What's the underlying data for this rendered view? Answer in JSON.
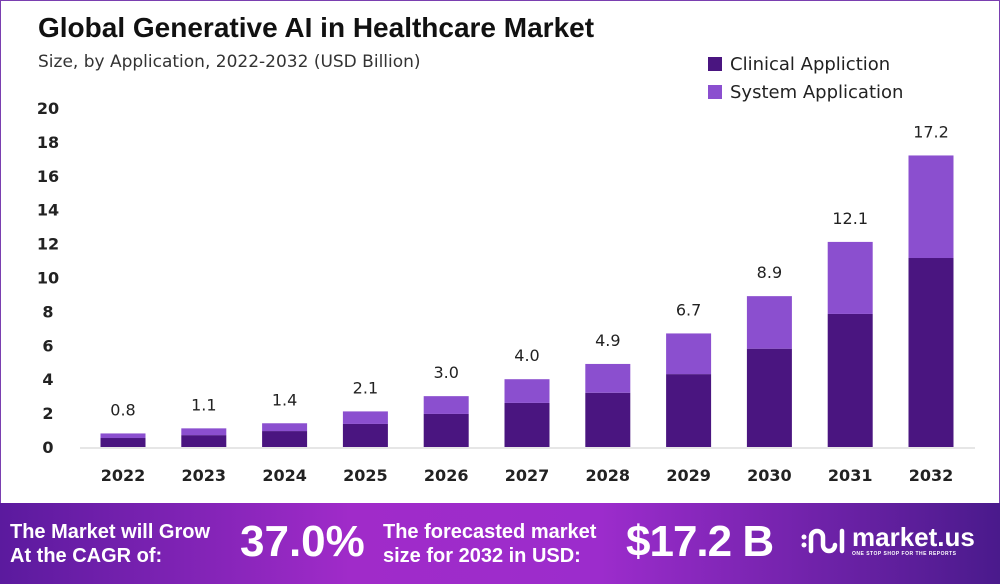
{
  "chart_data": {
    "type": "bar",
    "stacked": true,
    "title": "Global Generative AI in Healthcare Market",
    "subtitle": "Size, by Application, 2022-2032 (USD Billion)",
    "categories": [
      "2022",
      "2023",
      "2024",
      "2025",
      "2026",
      "2027",
      "2028",
      "2029",
      "2030",
      "2031",
      "2032"
    ],
    "series": [
      {
        "name": "Clinical Appliction",
        "color": "#4a1580",
        "values": [
          0.53,
          0.7,
          0.94,
          1.36,
          1.95,
          2.6,
          3.2,
          4.3,
          5.8,
          7.85,
          11.15
        ]
      },
      {
        "name": "System Application",
        "color": "#8b4fcf",
        "values": [
          0.27,
          0.4,
          0.46,
          0.74,
          1.05,
          1.4,
          1.7,
          2.4,
          3.1,
          4.25,
          6.05
        ]
      }
    ],
    "totals": [
      "0.8",
      "1.1",
      "1.4",
      "2.1",
      "3.0",
      "4.0",
      "4.9",
      "6.7",
      "8.9",
      "12.1",
      "17.2"
    ],
    "ylim": [
      0,
      20
    ],
    "yticks": [
      0,
      2,
      4,
      6,
      8,
      10,
      12,
      14,
      16,
      18,
      20
    ],
    "grid": false,
    "legend": "top-right"
  },
  "footer": {
    "cagr_label_1": "The Market will Grow",
    "cagr_label_2": "At the CAGR of:",
    "cagr_value": "37.0%",
    "forecast_label_1": "The forecasted market",
    "forecast_label_2": "size for 2032 in USD:",
    "forecast_value": "$17.2 B",
    "brand": "market.us",
    "brand_tagline": "ONE STOP SHOP FOR THE REPORTS"
  }
}
